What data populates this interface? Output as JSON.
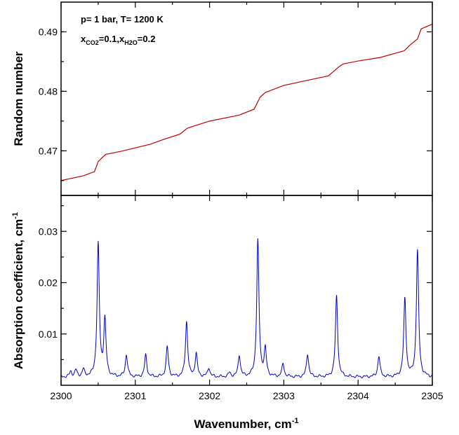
{
  "chart_data": [
    {
      "type": "line",
      "panel": "top",
      "ylabel": "Random number",
      "xlim": [
        2300,
        2305
      ],
      "ylim": [
        0.4625,
        0.495
      ],
      "yticks": [
        "0.47",
        "0.48",
        "0.49"
      ],
      "yticks_values": [
        0.47,
        0.48,
        0.49
      ],
      "grid": false,
      "annotations": {
        "line1": "p= 1 bar, T= 1200 K",
        "line2_parts": [
          {
            "text": "x",
            "sub": false
          },
          {
            "text": "CO2",
            "sub": true
          },
          {
            "text": "=0.1,x",
            "sub": false
          },
          {
            "text": "H2O",
            "sub": true
          },
          {
            "text": "=0.2",
            "sub": false
          }
        ]
      },
      "series": [
        {
          "color": "#c00000",
          "x": [
            2300.0,
            2300.3,
            2300.45,
            2300.5,
            2300.6,
            2300.8,
            2301.0,
            2301.2,
            2301.4,
            2301.6,
            2301.7,
            2302.0,
            2302.4,
            2302.6,
            2302.68,
            2302.75,
            2303.0,
            2303.3,
            2303.6,
            2303.75,
            2303.8,
            2304.0,
            2304.3,
            2304.5,
            2304.62,
            2304.7,
            2304.8,
            2304.85,
            2305.0
          ],
          "y": [
            0.465,
            0.4658,
            0.4665,
            0.4682,
            0.4694,
            0.4699,
            0.4705,
            0.4711,
            0.472,
            0.4728,
            0.4738,
            0.475,
            0.476,
            0.477,
            0.479,
            0.4798,
            0.481,
            0.4818,
            0.4826,
            0.4842,
            0.4846,
            0.4851,
            0.4857,
            0.4864,
            0.4868,
            0.4878,
            0.4888,
            0.4905,
            0.4913
          ]
        }
      ]
    },
    {
      "type": "line",
      "panel": "bottom",
      "xlabel_parts": [
        {
          "text": "Wavenumber, cm",
          "sup": false
        },
        {
          "text": "-1",
          "sup": true
        }
      ],
      "ylabel_parts": [
        {
          "text": "Absorption coefficient, cm",
          "sup": false
        },
        {
          "text": "-1",
          "sup": true
        }
      ],
      "xlim": [
        2300,
        2305
      ],
      "ylim": [
        0,
        0.037
      ],
      "xticks": [
        "2300",
        "2301",
        "2302",
        "2303",
        "2304",
        "2305"
      ],
      "xticks_values": [
        2300,
        2301,
        2302,
        2303,
        2304,
        2305
      ],
      "yticks": [
        "0.01",
        "0.02",
        "0.03"
      ],
      "yticks_values": [
        0.01,
        0.02,
        0.03
      ],
      "grid": false,
      "baseline": 0.0016,
      "peaks": [
        {
          "x": 2300.13,
          "h": 0.001
        },
        {
          "x": 2300.2,
          "h": 0.0013
        },
        {
          "x": 2300.3,
          "h": 0.0014
        },
        {
          "x": 2300.5,
          "h": 0.0258
        },
        {
          "x": 2300.59,
          "h": 0.011
        },
        {
          "x": 2300.88,
          "h": 0.0043
        },
        {
          "x": 2301.14,
          "h": 0.0042
        },
        {
          "x": 2301.43,
          "h": 0.0058
        },
        {
          "x": 2301.69,
          "h": 0.0108
        },
        {
          "x": 2301.82,
          "h": 0.0045
        },
        {
          "x": 2301.99,
          "h": 0.0018
        },
        {
          "x": 2302.27,
          "h": 0.0008
        },
        {
          "x": 2302.4,
          "h": 0.0042
        },
        {
          "x": 2302.65,
          "h": 0.0266
        },
        {
          "x": 2302.75,
          "h": 0.0052
        },
        {
          "x": 2302.99,
          "h": 0.0025
        },
        {
          "x": 2303.32,
          "h": 0.0045
        },
        {
          "x": 2303.71,
          "h": 0.0158
        },
        {
          "x": 2304.28,
          "h": 0.004
        },
        {
          "x": 2304.63,
          "h": 0.0152
        },
        {
          "x": 2304.8,
          "h": 0.0246
        }
      ],
      "series": [
        {
          "color": "#0000c8"
        }
      ]
    }
  ]
}
